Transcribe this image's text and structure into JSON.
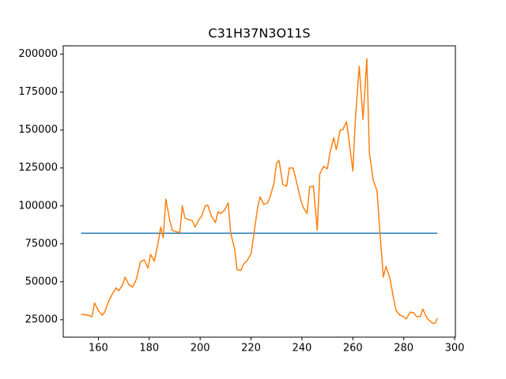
{
  "chart_data": {
    "type": "line",
    "title": "C31H37N3O11S",
    "xlim": [
      146.2,
      300.3
    ],
    "ylim": [
      13500,
      205500
    ],
    "xticks": [
      160,
      180,
      200,
      220,
      240,
      260,
      280,
      300
    ],
    "yticks": [
      25000,
      50000,
      75000,
      100000,
      125000,
      150000,
      175000,
      200000
    ],
    "grid": false,
    "series": [
      {
        "color": "#1f77b4",
        "x": [
          153.2,
          293.2
        ],
        "values": [
          82000,
          82000
        ]
      },
      {
        "color": "#ff7f0e",
        "x": [
          153.2,
          156,
          157.5,
          158.5,
          160,
          161.5,
          162.5,
          164,
          165.5,
          167,
          168,
          169.5,
          170.5,
          172,
          173.5,
          175,
          176.5,
          178,
          179.5,
          180.5,
          182,
          183.5,
          184.5,
          185.5,
          186.5,
          188,
          189,
          190.5,
          192,
          193,
          194,
          195.5,
          197,
          198,
          199.5,
          200.5,
          202,
          203,
          204.5,
          206,
          207,
          208,
          209.5,
          211,
          212,
          213.5,
          214.5,
          216,
          217,
          218.5,
          220,
          221,
          222.5,
          223.5,
          225,
          226.5,
          227.5,
          229,
          230,
          231,
          232.5,
          234,
          235,
          236.5,
          238,
          239.5,
          240.5,
          242,
          243,
          244.5,
          246,
          247,
          248.5,
          250,
          251,
          252.5,
          253.5,
          255,
          256,
          257.5,
          258.5,
          260,
          261,
          262.5,
          264,
          265.5,
          266.5,
          268,
          269.5,
          270.5,
          272,
          273,
          274.5,
          276,
          277,
          278.5,
          280,
          281,
          282.5,
          284,
          285,
          286.5,
          287.5,
          289,
          290,
          291.5,
          292.5,
          293.2
        ],
        "values": [
          28500,
          28000,
          27000,
          36000,
          31000,
          28000,
          30000,
          37000,
          42000,
          46000,
          44000,
          48000,
          53000,
          48000,
          46500,
          52000,
          63000,
          64500,
          59000,
          68000,
          63500,
          76000,
          86000,
          79000,
          104500,
          91000,
          84000,
          83000,
          82500,
          100000,
          92000,
          91000,
          90000,
          86000,
          91000,
          93000,
          100000,
          100500,
          93000,
          89000,
          96000,
          95000,
          97000,
          102000,
          82000,
          72000,
          58000,
          57500,
          61500,
          64000,
          68500,
          80000,
          98000,
          106000,
          101000,
          102000,
          106000,
          115000,
          128000,
          130000,
          114000,
          113000,
          125000,
          125000,
          115000,
          104000,
          99000,
          95000,
          112500,
          113000,
          84000,
          121000,
          126000,
          124500,
          135000,
          145000,
          137000,
          150000,
          150000,
          155500,
          143000,
          123000,
          157000,
          192000,
          157000,
          197000,
          135000,
          117000,
          110000,
          86000,
          53000,
          60000,
          53000,
          39000,
          31000,
          28000,
          27000,
          25500,
          30000,
          29500,
          27000,
          27000,
          32000,
          26500,
          24500,
          22500,
          23000,
          26000
        ]
      }
    ]
  }
}
